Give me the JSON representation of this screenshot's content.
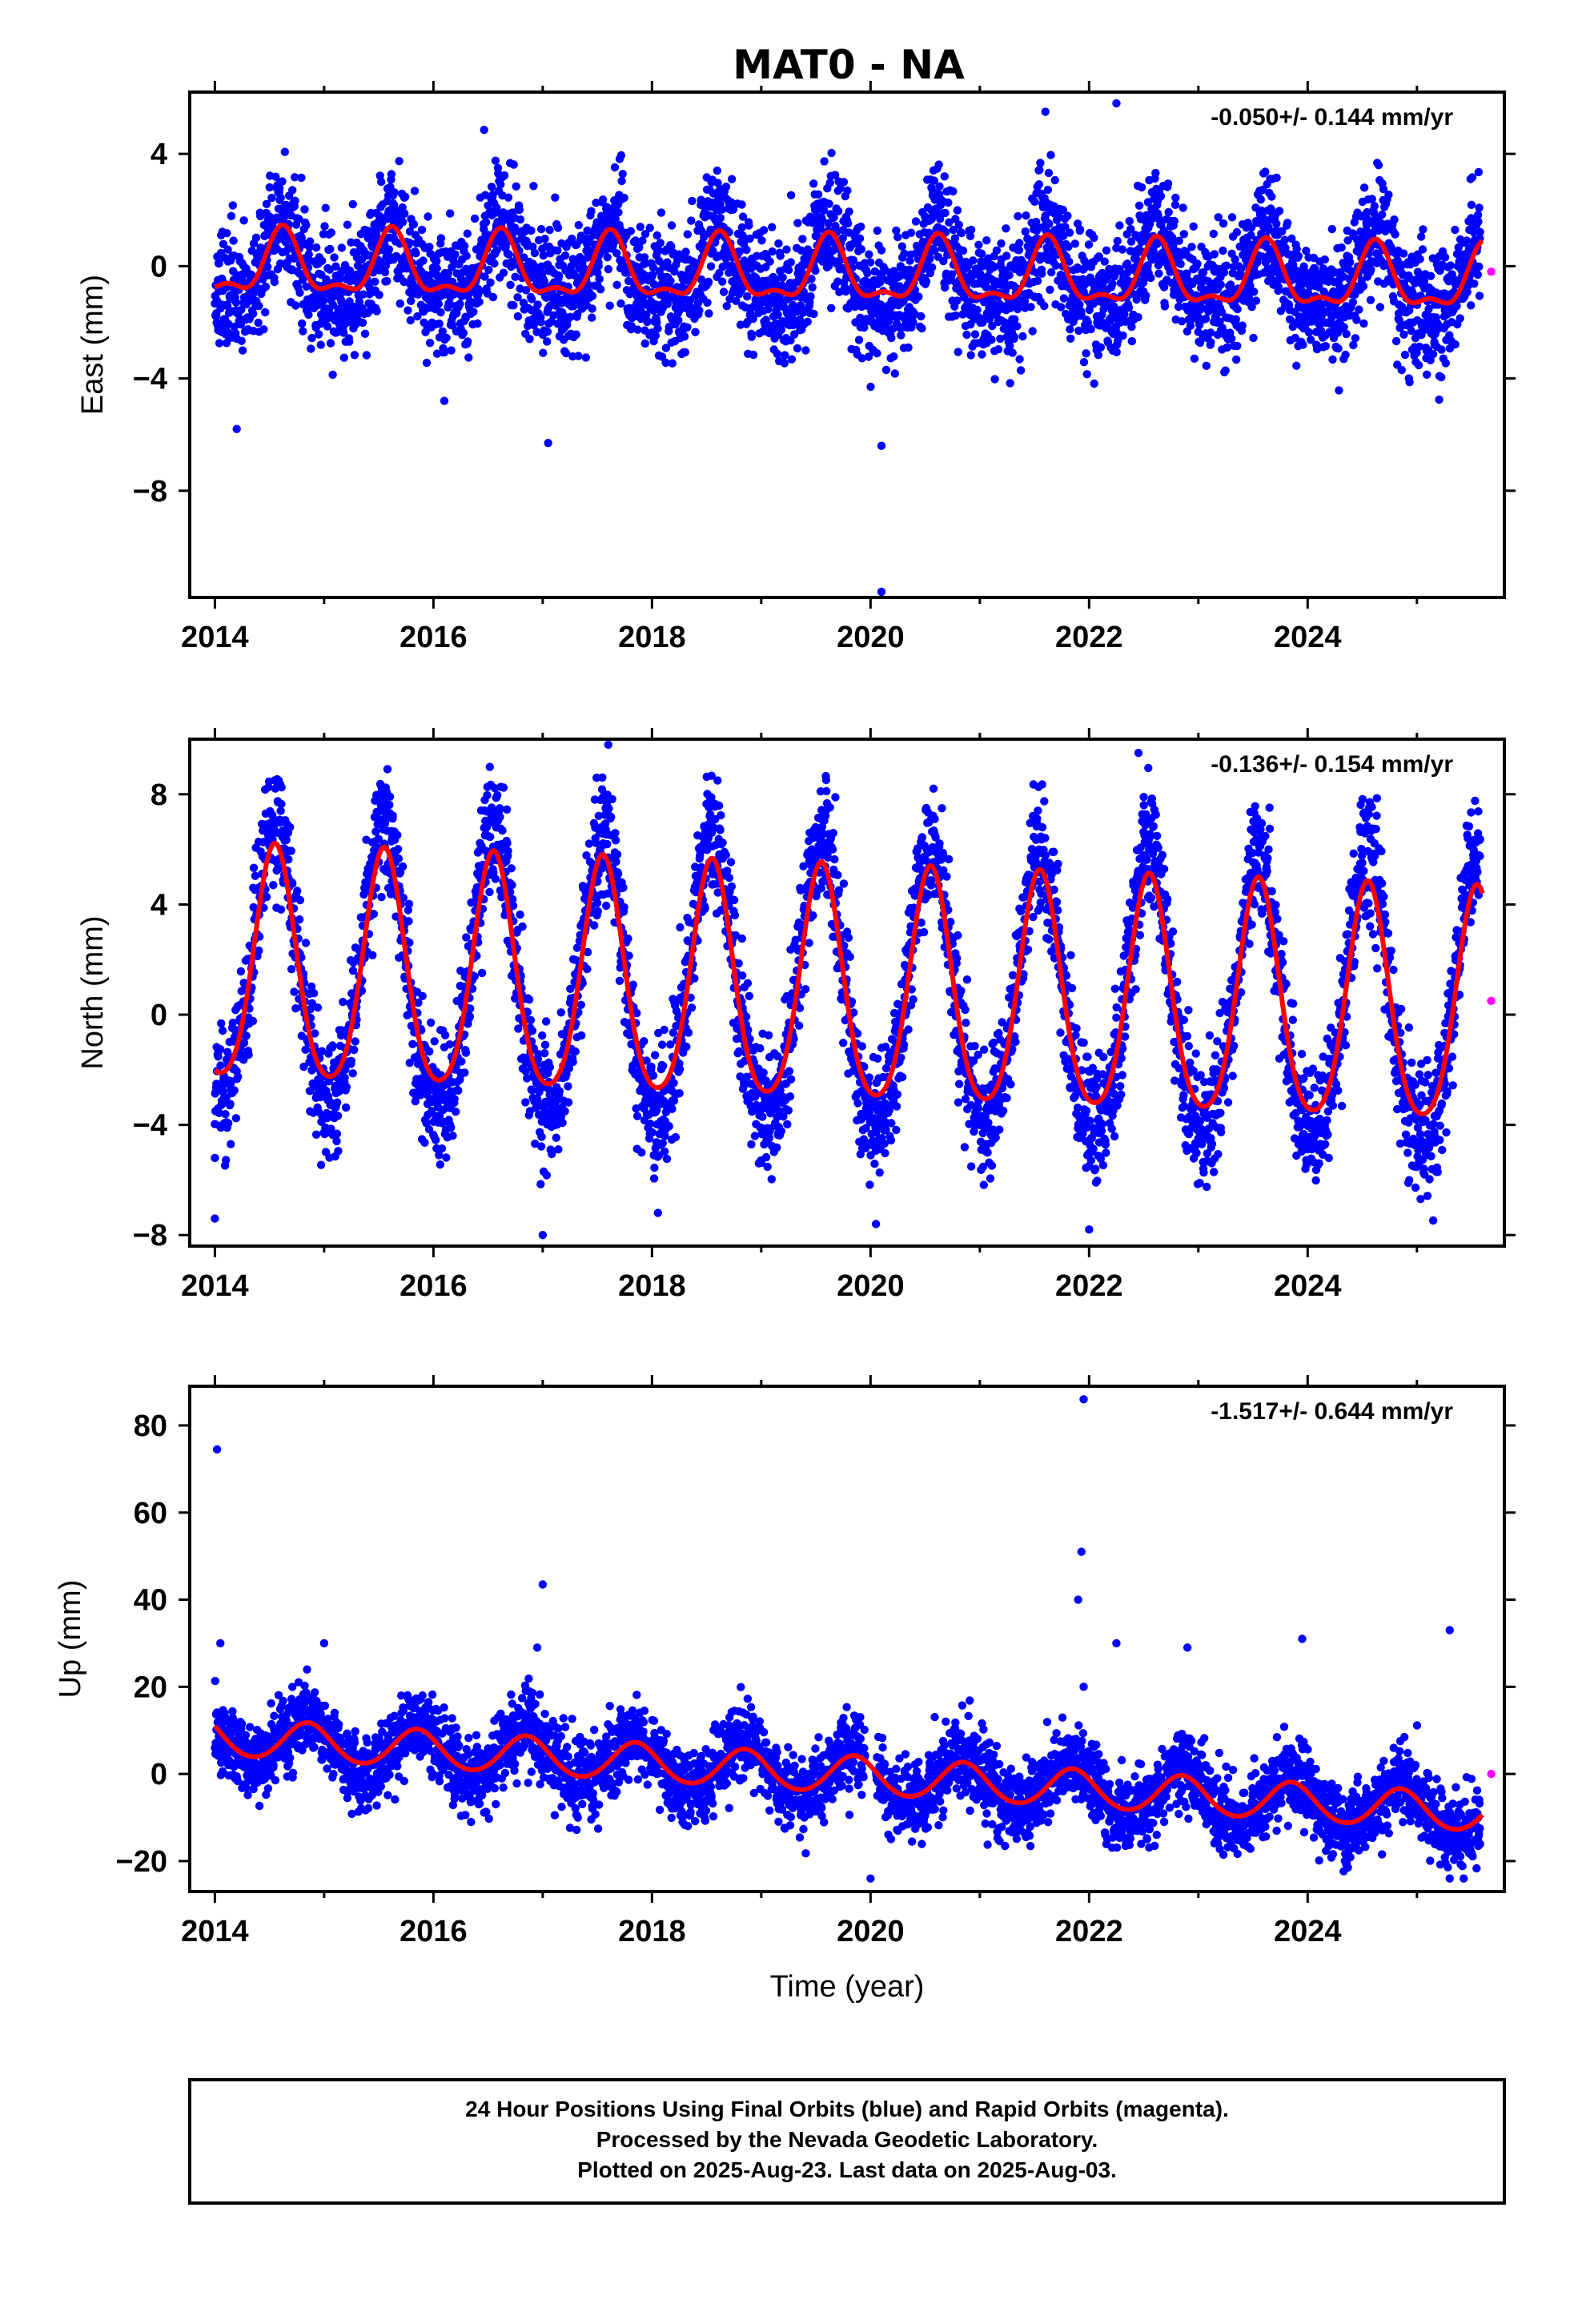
{
  "title": "MAT0 - NA",
  "colors": {
    "final_orbits": "#0000ff",
    "rapid_orbits": "#ff00ff",
    "model_fit": "#ff0000",
    "frame": "#000000"
  },
  "chart_data": [
    {
      "type": "scatter",
      "ylabel": "East (mm)",
      "xlabel": "",
      "rate_label": "-0.050+/- 0.144 mm/yr",
      "xlim": [
        2013.77,
        2025.8
      ],
      "ylim": [
        -11.8,
        6.2
      ],
      "xticks": [
        2014,
        2016,
        2018,
        2020,
        2022,
        2024
      ],
      "xtick_labels": [
        "2014",
        "2016",
        "2018",
        "2020",
        "2022",
        "2024"
      ],
      "yticks": [
        -8,
        -4,
        0,
        4
      ],
      "ytick_labels": [
        "−8",
        "−4",
        "0",
        "4"
      ],
      "model": {
        "offset": 0.0,
        "trend": -0.05,
        "amplitude": 1.05,
        "phase_peak": 0.62,
        "semi_amplitude": 0.45
      },
      "scatter": {
        "sigma": 1.05,
        "band": 1.0,
        "seed": 11,
        "seasonal_scale": 1.2
      },
      "gap": null,
      "outliers": [
        {
          "x": 2014.2,
          "y": -5.8
        },
        {
          "x": 2017.05,
          "y": -6.3
        },
        {
          "x": 2020.1,
          "y": -6.4
        },
        {
          "x": 2020.1,
          "y": -11.6
        },
        {
          "x": 2022.25,
          "y": 5.8
        },
        {
          "x": 2021.6,
          "y": 5.5
        },
        {
          "x": 2024.65,
          "y": 3.6
        },
        {
          "x": 2016.1,
          "y": -4.8
        }
      ],
      "rapid_points": [
        {
          "x": 2025.68,
          "y": -0.2
        }
      ]
    },
    {
      "type": "scatter",
      "ylabel": "North (mm)",
      "xlabel": "",
      "rate_label": "-0.136+/- 0.154 mm/yr",
      "xlim": [
        2013.77,
        2025.8
      ],
      "ylim": [
        -8.4,
        10.0
      ],
      "xticks": [
        2014,
        2016,
        2018,
        2020,
        2022,
        2024
      ],
      "xtick_labels": [
        "2014",
        "2016",
        "2018",
        "2020",
        "2022",
        "2024"
      ],
      "yticks": [
        -8,
        -4,
        0,
        4,
        8
      ],
      "ytick_labels": [
        "−8",
        "−4",
        "0",
        "4",
        "8"
      ],
      "model": {
        "offset": 1.5,
        "trend": -0.136,
        "amplitude": 4.2,
        "phase_peak": 0.55,
        "semi_amplitude": 0.6
      },
      "scatter": {
        "sigma": 1.1,
        "band": 0.8,
        "seed": 23,
        "seasonal_scale": 1.2
      },
      "gap": null,
      "outliers": [
        {
          "x": 2014.0,
          "y": -7.4
        },
        {
          "x": 2014.0,
          "y": -5.2
        },
        {
          "x": 2017.0,
          "y": -8.0
        },
        {
          "x": 2017.6,
          "y": 9.8
        },
        {
          "x": 2020.05,
          "y": -7.6
        },
        {
          "x": 2022.0,
          "y": -7.8
        },
        {
          "x": 2022.5,
          "y": 7.9
        },
        {
          "x": 2018.6,
          "y": 8.5
        }
      ],
      "rapid_points": [
        {
          "x": 2025.68,
          "y": 0.5
        }
      ]
    },
    {
      "type": "scatter",
      "ylabel": "Up (mm)",
      "xlabel": "Time (year)",
      "rate_label": "-1.517+/- 0.644 mm/yr",
      "xlim": [
        2013.77,
        2025.8
      ],
      "ylim": [
        -27,
        89
      ],
      "xticks": [
        2014,
        2016,
        2018,
        2020,
        2022,
        2024
      ],
      "xtick_labels": [
        "2014",
        "2016",
        "2018",
        "2020",
        "2022",
        "2024"
      ],
      "yticks": [
        -20,
        0,
        20,
        40,
        60,
        80
      ],
      "ytick_labels": [
        "−20",
        "0",
        "20",
        "40",
        "60",
        "80"
      ],
      "model": {
        "offset": 8.5,
        "trend": -1.517,
        "amplitude": 4.3,
        "phase_peak": 0.85,
        "semi_amplitude": 0.3
      },
      "scatter": {
        "sigma": 4.2,
        "band": 3.0,
        "seed": 37,
        "seasonal_scale": 1.3
      },
      "gap": [
        2019.95,
        2020.05
      ],
      "outliers": [
        {
          "x": 2014.02,
          "y": 74.5
        },
        {
          "x": 2014.05,
          "y": 30
        },
        {
          "x": 2015.0,
          "y": 30
        },
        {
          "x": 2017.0,
          "y": 43.5
        },
        {
          "x": 2016.95,
          "y": 29
        },
        {
          "x": 2021.95,
          "y": 86
        },
        {
          "x": 2021.93,
          "y": 51
        },
        {
          "x": 2021.9,
          "y": 40
        },
        {
          "x": 2022.25,
          "y": 30
        },
        {
          "x": 2022.9,
          "y": 29
        },
        {
          "x": 2023.95,
          "y": 31
        },
        {
          "x": 2025.3,
          "y": 33
        },
        {
          "x": 2025.3,
          "y": -24
        },
        {
          "x": 2020.0,
          "y": -24
        },
        {
          "x": 2021.95,
          "y": 20
        }
      ],
      "rapid_points": [
        {
          "x": 2025.68,
          "y": 0
        }
      ]
    }
  ],
  "footer": {
    "line1": "24 Hour Positions Using Final Orbits (blue) and Rapid Orbits (magenta).",
    "line2": "Processed by the Nevada Geodetic Laboratory.",
    "line3": "Plotted on 2025-Aug-23. Last data on 2025-Aug-03."
  }
}
